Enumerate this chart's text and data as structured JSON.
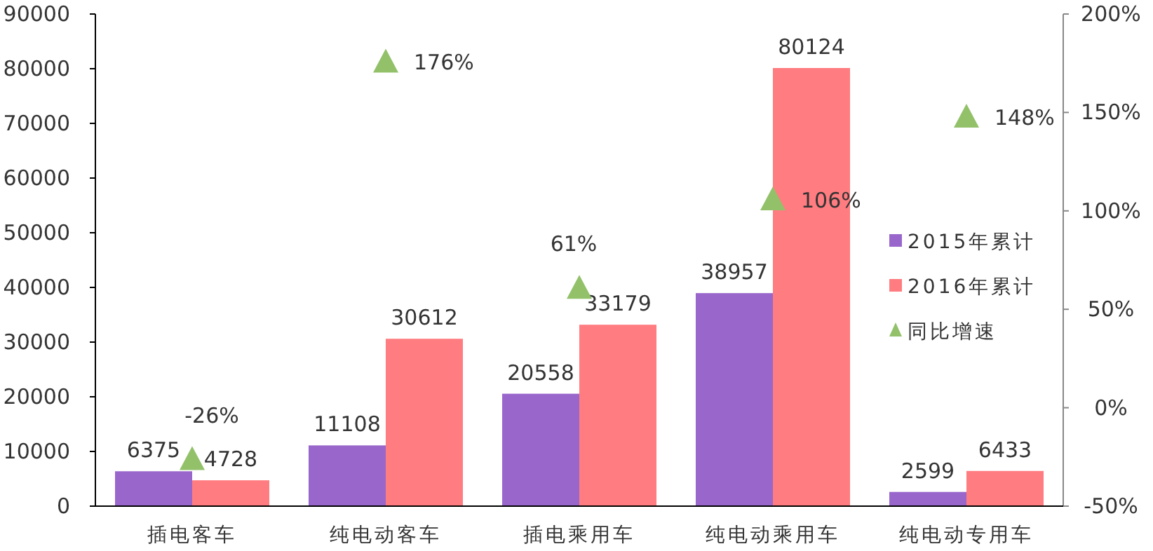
{
  "chart_data": {
    "type": "bar",
    "categories": [
      "插电客车",
      "纯电动客车",
      "插电乘用车",
      "纯电动乘用车",
      "纯电动专用车"
    ],
    "series": [
      {
        "name": "2015年累计",
        "color": "#9966cc",
        "values": [
          6375,
          11108,
          20558,
          38957,
          2599
        ]
      },
      {
        "name": "2016年累计",
        "color": "#ff7c80",
        "values": [
          4728,
          30612,
          33179,
          80124,
          6433
        ]
      },
      {
        "name": "同比增速",
        "type": "scatter",
        "axis": "y2",
        "marker": "triangle",
        "color": "#92c16a",
        "values": [
          -26,
          176,
          61,
          106,
          148
        ],
        "value_labels": [
          "-26%",
          "176%",
          "61%",
          "106%",
          "148%"
        ]
      }
    ],
    "ylim": [
      0,
      90000
    ],
    "yticks": [
      0,
      10000,
      20000,
      30000,
      40000,
      50000,
      60000,
      70000,
      80000,
      90000
    ],
    "y2lim": [
      -50,
      200
    ],
    "y2ticks": [
      {
        "value": -50,
        "label": "-50%"
      },
      {
        "value": 0,
        "label": "0%"
      },
      {
        "value": 50,
        "label": "50%"
      },
      {
        "value": 100,
        "label": "100%"
      },
      {
        "value": 150,
        "label": "150%"
      },
      {
        "value": 200,
        "label": "200%"
      }
    ],
    "data_labels": true,
    "legend": "right",
    "grid": false
  }
}
